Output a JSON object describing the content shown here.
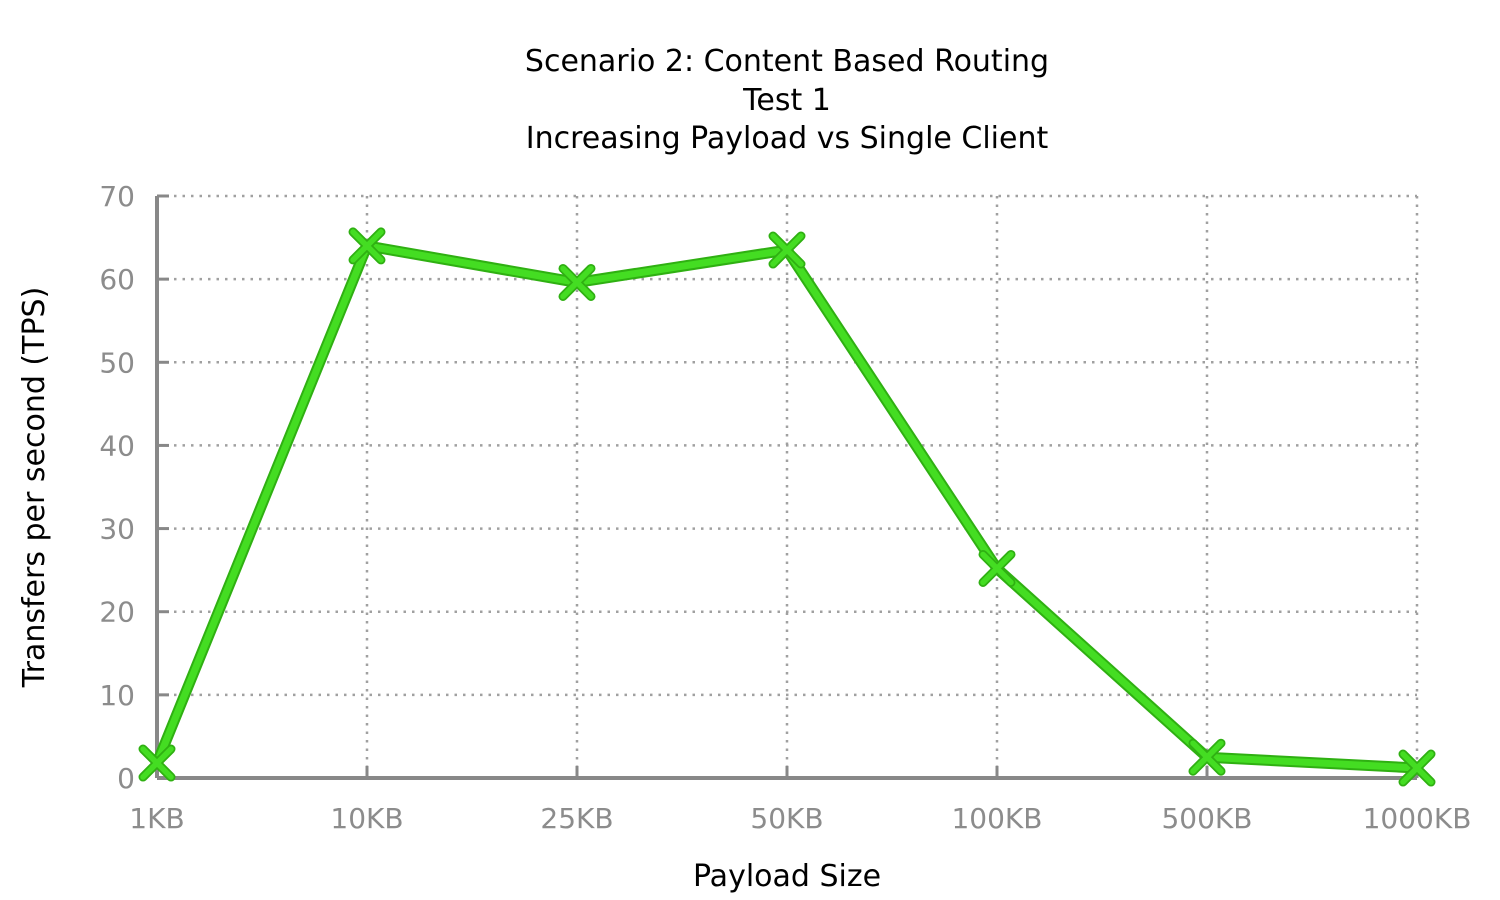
{
  "chart_data": {
    "type": "line",
    "title_lines": [
      "Scenario 2: Content Based Routing",
      "Test 1",
      "Increasing Payload vs Single Client"
    ],
    "xlabel": "Payload Size",
    "ylabel": "Transfers per second (TPS)",
    "categories": [
      "1KB",
      "10KB",
      "25KB",
      "50KB",
      "100KB",
      "500KB",
      "1000KB"
    ],
    "y_ticks": [
      0,
      10,
      20,
      30,
      40,
      50,
      60,
      70
    ],
    "ylim": [
      0,
      70
    ],
    "grid": true,
    "series": [
      {
        "values": [
          1.8,
          64.0,
          59.6,
          63.5,
          25.2,
          2.5,
          1.2
        ],
        "color": "#44dd22",
        "marker": "x-cross"
      }
    ],
    "colors": {
      "grid": "#a0a0a0",
      "axis": "#888888",
      "tick_text": "#8c8c8c"
    }
  }
}
